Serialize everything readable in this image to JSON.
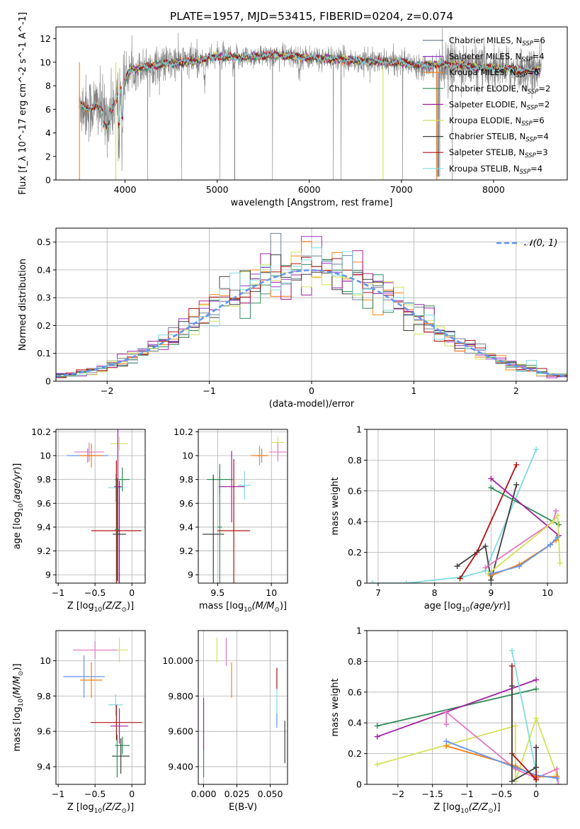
{
  "figure": {
    "title": "PLATE=1957, MJD=53415, FIBERID=0204, z=0.074",
    "legend_entries": [
      {
        "label": "Chabrier MILES, N",
        "sub": "SSP",
        "n": "=6",
        "color": "#708090"
      },
      {
        "label": "Salpeter MILES, N",
        "sub": "SSP",
        "n": "=4",
        "color": "#9932cc"
      },
      {
        "label": "Kroupa MILES, N",
        "sub": "SSP",
        "n": "=6",
        "color": "#ff7f0e"
      },
      {
        "label": "Chabrier ELODIE, N",
        "sub": "SSP",
        "n": "=2",
        "color": "#2e8b57"
      },
      {
        "label": "Salpeter ELODIE, N",
        "sub": "SSP",
        "n": "=2",
        "color": "#a020a0"
      },
      {
        "label": "Kroupa ELODIE, N",
        "sub": "SSP",
        "n": "=6",
        "color": "#d4e157"
      },
      {
        "label": "Chabrier STELIB, N",
        "sub": "SSP",
        "n": "=4",
        "color": "#404040"
      },
      {
        "label": "Salpeter STELIB, N",
        "sub": "SSP",
        "n": "=3",
        "color": "#b01010"
      },
      {
        "label": "Kroupa STELIB, N",
        "sub": "SSP",
        "n": "=4",
        "color": "#7fdbe0"
      }
    ],
    "hist_legend": "𝒩(0, 1)",
    "hist_legend_color": "#6495ed"
  },
  "chart_data": [
    {
      "id": "spectrum",
      "type": "line",
      "xlabel": "wavelength [Angstrom, rest frame]",
      "ylabel": "Flux [f_λ 10^-17 erg cm^-2 s^-1 A^-1]",
      "xlim": [
        3250,
        8800
      ],
      "ylim": [
        0,
        13
      ],
      "xticks": [
        4000,
        5000,
        6000,
        7000,
        8000
      ],
      "yticks": [
        0,
        2,
        4,
        6,
        8,
        10,
        12
      ],
      "data_range": [
        3500,
        8520
      ],
      "continuum": {
        "x": [
          3500,
          3600,
          3700,
          3800,
          3950,
          4050,
          4200,
          4400,
          4600,
          4800,
          5000,
          5200,
          5400,
          5600,
          5800,
          6000,
          6200,
          6400,
          6600,
          6800,
          7000,
          7200,
          7400,
          7600,
          7800,
          8000,
          8200,
          8400,
          8520
        ],
        "y": [
          6.5,
          6.0,
          6.4,
          5.2,
          7.5,
          9.3,
          9.6,
          9.8,
          10.0,
          10.1,
          10.5,
          10.4,
          10.5,
          10.6,
          10.5,
          10.4,
          10.3,
          10.2,
          10.1,
          10.0,
          10.0,
          9.7,
          9.8,
          9.8,
          9.6,
          9.5,
          9.4,
          9.3,
          9.3
        ]
      }
    },
    {
      "id": "residuals",
      "type": "bar",
      "xlabel": "(data-model)/error",
      "ylabel": "Normed distribution",
      "xlim": [
        -2.5,
        2.5
      ],
      "ylim": [
        0,
        0.55
      ],
      "xticks": [
        -2,
        -1,
        0,
        1,
        2
      ],
      "yticks": [
        0.0,
        0.1,
        0.2,
        0.3,
        0.4,
        0.5
      ],
      "bin_width": 0.1
    },
    {
      "id": "age_vs_Z",
      "type": "scatter",
      "xlabel": "Z [log10(Z/Z☉)]",
      "ylabel": "age  [log10(age/yr)]",
      "xlim": [
        -1.03,
        0.18
      ],
      "ylim": [
        8.93,
        10.22
      ],
      "xticks": [
        -1.0,
        -0.5,
        0.0
      ],
      "yticks": [
        9.0,
        9.2,
        9.4,
        9.6,
        9.8,
        10.0,
        10.2
      ],
      "points": [
        {
          "x": -0.17,
          "y": 10.1,
          "xerr": 0.12,
          "yerr": 0.06,
          "color": "#d4e157"
        },
        {
          "x": -0.58,
          "y": 10.03,
          "xerr": 0.2,
          "yerr": 0.08,
          "color": "#e377c2"
        },
        {
          "x": -0.6,
          "y": 10.0,
          "xerr": 0.28,
          "yerr": 0.06,
          "color": "#6495ed"
        },
        {
          "x": -0.55,
          "y": 10.0,
          "xerr": 0.15,
          "yerr": 0.1,
          "color": "#ff7f0e"
        },
        {
          "x": -0.22,
          "y": 9.73,
          "xerr": 0.1,
          "yerr": 0.12,
          "color": "#7fdbe0"
        },
        {
          "x": -0.13,
          "y": 9.8,
          "xerr": 0.1,
          "yerr": 0.1,
          "color": "#2e8b57"
        },
        {
          "x": -0.19,
          "y": 9.74,
          "xerr": 0.05,
          "yerr": 0.8,
          "color": "#a020a0"
        },
        {
          "x": -0.21,
          "y": 9.37,
          "xerr": 0.34,
          "yerr": 0.59,
          "color": "#b01010"
        },
        {
          "x": -0.17,
          "y": 9.34,
          "xerr": 0.09,
          "yerr": 0.45,
          "color": "#404040"
        },
        {
          "x": -0.2,
          "y": 9.38,
          "xerr": 0.03,
          "yerr": 0.43,
          "color": "#2e8b57"
        }
      ]
    },
    {
      "id": "age_vs_mass",
      "type": "scatter",
      "xlabel": "mass [log10(M/M☉)]",
      "ylabel": "",
      "xlim": [
        9.32,
        10.15
      ],
      "ylim": [
        8.93,
        10.22
      ],
      "xticks": [
        9.5,
        10.0
      ],
      "yticks": [
        9.0,
        9.2,
        9.4,
        9.6,
        9.8,
        10.0,
        10.2
      ],
      "points": [
        {
          "x": 10.06,
          "y": 10.11,
          "xerr": 0.06,
          "yerr": 0.05,
          "color": "#d4e157"
        },
        {
          "x": 10.06,
          "y": 10.03,
          "xerr": 0.08,
          "yerr": 0.08,
          "color": "#e377c2"
        },
        {
          "x": 9.91,
          "y": 10.0,
          "xerr": 0.05,
          "yerr": 0.06,
          "color": "#6495ed"
        },
        {
          "x": 9.89,
          "y": 10.0,
          "xerr": 0.08,
          "yerr": 0.08,
          "color": "#ff7f0e"
        },
        {
          "x": 9.75,
          "y": 9.75,
          "xerr": 0.06,
          "yerr": 0.12,
          "color": "#7fdbe0"
        },
        {
          "x": 9.52,
          "y": 9.8,
          "xerr": 0.12,
          "yerr": 0.13,
          "color": "#2e8b57"
        },
        {
          "x": 9.63,
          "y": 9.74,
          "xerr": 0.12,
          "yerr": 0.3,
          "color": "#a020a0"
        },
        {
          "x": 9.65,
          "y": 9.37,
          "xerr": 0.15,
          "yerr": 0.6,
          "color": "#b01010"
        },
        {
          "x": 9.46,
          "y": 9.34,
          "xerr": 0.1,
          "yerr": 0.5,
          "color": "#404040"
        },
        {
          "x": 9.52,
          "y": 9.4,
          "xerr": 0.02,
          "yerr": 0.48,
          "color": "#2e8b57"
        }
      ]
    },
    {
      "id": "weight_vs_age",
      "type": "line",
      "xlabel": "age  [log10(age/yr)]",
      "ylabel": "mass weight",
      "xlim": [
        6.8,
        10.35
      ],
      "ylim": [
        0,
        1.0
      ],
      "xticks": [
        7,
        8,
        9,
        10
      ],
      "yticks": [
        0.0,
        0.2,
        0.4,
        0.6,
        0.8,
        1.0
      ],
      "series": [
        {
          "color": "#7fdbe0",
          "x": [
            6.9,
            7.5,
            8.5,
            8.9,
            9.8
          ],
          "y": [
            0.0,
            0.0,
            0.04,
            0.08,
            0.87
          ]
        },
        {
          "color": "#b01010",
          "x": [
            8.45,
            8.75,
            9.45
          ],
          "y": [
            0.03,
            0.2,
            0.77
          ]
        },
        {
          "color": "#404040",
          "x": [
            8.4,
            8.9,
            9.0,
            9.45
          ],
          "y": [
            0.11,
            0.24,
            0.02,
            0.64
          ]
        },
        {
          "color": "#2e8b57",
          "x": [
            9.0,
            10.2
          ],
          "y": [
            0.62,
            0.38
          ]
        },
        {
          "color": "#a020a0",
          "x": [
            9.0,
            10.2
          ],
          "y": [
            0.68,
            0.31
          ]
        },
        {
          "color": "#e377c2",
          "x": [
            8.9,
            10.1,
            10.15
          ],
          "y": [
            0.1,
            0.4,
            0.47
          ]
        },
        {
          "color": "#d4e157",
          "x": [
            8.95,
            10.1,
            10.18,
            10.22
          ],
          "y": [
            0.06,
            0.4,
            0.44,
            0.13
          ]
        },
        {
          "color": "#ff7f0e",
          "x": [
            9.0,
            9.5,
            10.05,
            10.15
          ],
          "y": [
            0.05,
            0.12,
            0.25,
            0.28
          ]
        },
        {
          "color": "#6495ed",
          "x": [
            9.0,
            9.5,
            10.05,
            10.18
          ],
          "y": [
            0.06,
            0.11,
            0.25,
            0.3
          ]
        }
      ]
    },
    {
      "id": "mass_vs_Z",
      "type": "scatter",
      "xlabel": "Z [log10(Z/Z☉)]",
      "ylabel": "mass [log10(M/M☉)]",
      "xlim": [
        -1.03,
        0.18
      ],
      "ylim": [
        9.3,
        10.17
      ],
      "xticks": [
        -1.0,
        -0.5,
        0.0
      ],
      "yticks": [
        9.4,
        9.6,
        9.8,
        10.0
      ],
      "points": [
        {
          "x": -0.17,
          "y": 10.06,
          "xerr": 0.12,
          "yerr": 0.07,
          "color": "#d4e157"
        },
        {
          "x": -0.5,
          "y": 10.06,
          "xerr": 0.3,
          "yerr": 0.05,
          "color": "#e377c2"
        },
        {
          "x": -0.65,
          "y": 9.91,
          "xerr": 0.28,
          "yerr": 0.12,
          "color": "#6495ed"
        },
        {
          "x": -0.55,
          "y": 9.89,
          "xerr": 0.15,
          "yerr": 0.1,
          "color": "#ff7f0e"
        },
        {
          "x": -0.22,
          "y": 9.75,
          "xerr": 0.1,
          "yerr": 0.06,
          "color": "#7fdbe0"
        },
        {
          "x": -0.21,
          "y": 9.65,
          "xerr": 0.35,
          "yerr": 0.1,
          "color": "#b01010"
        },
        {
          "x": -0.17,
          "y": 9.63,
          "xerr": 0.12,
          "yerr": 0.1,
          "color": "#a020a0"
        },
        {
          "x": -0.13,
          "y": 9.52,
          "xerr": 0.1,
          "yerr": 0.05,
          "color": "#2e8b57"
        },
        {
          "x": -0.15,
          "y": 9.46,
          "xerr": 0.12,
          "yerr": 0.1,
          "color": "#404040"
        },
        {
          "x": -0.2,
          "y": 9.46,
          "xerr": 0.03,
          "yerr": 0.12,
          "color": "#2e8b57"
        }
      ]
    },
    {
      "id": "mass_vs_EBV",
      "type": "scatter",
      "xlabel": "E(B-V)",
      "ylabel": "",
      "xlim": [
        -0.004,
        0.063
      ],
      "ylim": [
        9.3,
        10.17
      ],
      "xticks": [
        0.0,
        0.025,
        0.05
      ],
      "yticks": [
        9.4,
        9.6,
        9.8,
        10.0
      ],
      "points": [
        {
          "x": 0.0,
          "y": 9.64,
          "yerr": 0.15,
          "color": "#a020a0"
        },
        {
          "x": 0.0,
          "y": 9.42,
          "yerr": 0.08,
          "color": "#2e8b57"
        },
        {
          "x": 0.01,
          "y": 10.06,
          "yerr": 0.07,
          "color": "#d4e157"
        },
        {
          "x": 0.017,
          "y": 10.05,
          "yerr": 0.08,
          "color": "#e377c2"
        },
        {
          "x": 0.021,
          "y": 9.89,
          "yerr": 0.1,
          "color": "#ff7f0e"
        },
        {
          "x": 0.055,
          "y": 9.9,
          "yerr": 0.06,
          "color": "#b01010"
        },
        {
          "x": 0.055,
          "y": 9.74,
          "yerr": 0.1,
          "color": "#7fdbe0"
        },
        {
          "x": 0.055,
          "y": 9.66,
          "yerr": 0.04,
          "color": "#6495ed"
        },
        {
          "x": 0.061,
          "y": 9.54,
          "yerr": 0.12,
          "color": "#404040"
        }
      ]
    },
    {
      "id": "weight_vs_Z",
      "type": "line",
      "xlabel": "Z [log10(Z/Z☉)]",
      "ylabel": "mass weight",
      "xlim": [
        -2.45,
        0.45
      ],
      "ylim": [
        0,
        1.0
      ],
      "xticks": [
        -2.0,
        -1.5,
        -1.0,
        -0.5,
        0.0
      ],
      "yticks": [
        0.0,
        0.2,
        0.4,
        0.6,
        0.8,
        1.0
      ],
      "series": [
        {
          "color": "#2e8b57",
          "x": [
            -2.3,
            0.0
          ],
          "y": [
            0.38,
            0.62
          ]
        },
        {
          "color": "#a020a0",
          "x": [
            -2.3,
            0.0
          ],
          "y": [
            0.31,
            0.68
          ]
        },
        {
          "color": "#d4e157",
          "x": [
            -2.3,
            -0.3,
            -0.3,
            0.0,
            0.3,
            0.32
          ],
          "y": [
            0.13,
            0.38,
            0.02,
            0.43,
            0.06,
            0.0
          ]
        },
        {
          "color": "#e377c2",
          "x": [
            -1.3,
            -1.3,
            -0.3,
            0.0,
            0.3,
            0.32
          ],
          "y": [
            0.39,
            0.47,
            0.1,
            0.04,
            0.1,
            0.0
          ]
        },
        {
          "color": "#ff7f0e",
          "x": [
            -1.3,
            -0.3,
            0.0,
            0.3
          ],
          "y": [
            0.25,
            0.12,
            0.05,
            0.05
          ]
        },
        {
          "color": "#6495ed",
          "x": [
            -1.3,
            -0.3,
            0.0,
            0.3
          ],
          "y": [
            0.28,
            0.11,
            0.06,
            0.04
          ]
        },
        {
          "color": "#7fdbe0",
          "x": [
            -0.35,
            0.0,
            0.0
          ],
          "y": [
            0.87,
            0.08,
            0.0
          ]
        },
        {
          "color": "#b01010",
          "x": [
            -0.35,
            -0.35,
            0.0,
            0.0
          ],
          "y": [
            0.77,
            0.2,
            0.03,
            0.24
          ]
        },
        {
          "color": "#404040",
          "x": [
            -0.35,
            -0.35,
            0.0,
            0.0
          ],
          "y": [
            0.64,
            0.02,
            0.11,
            0.24
          ]
        }
      ]
    }
  ]
}
